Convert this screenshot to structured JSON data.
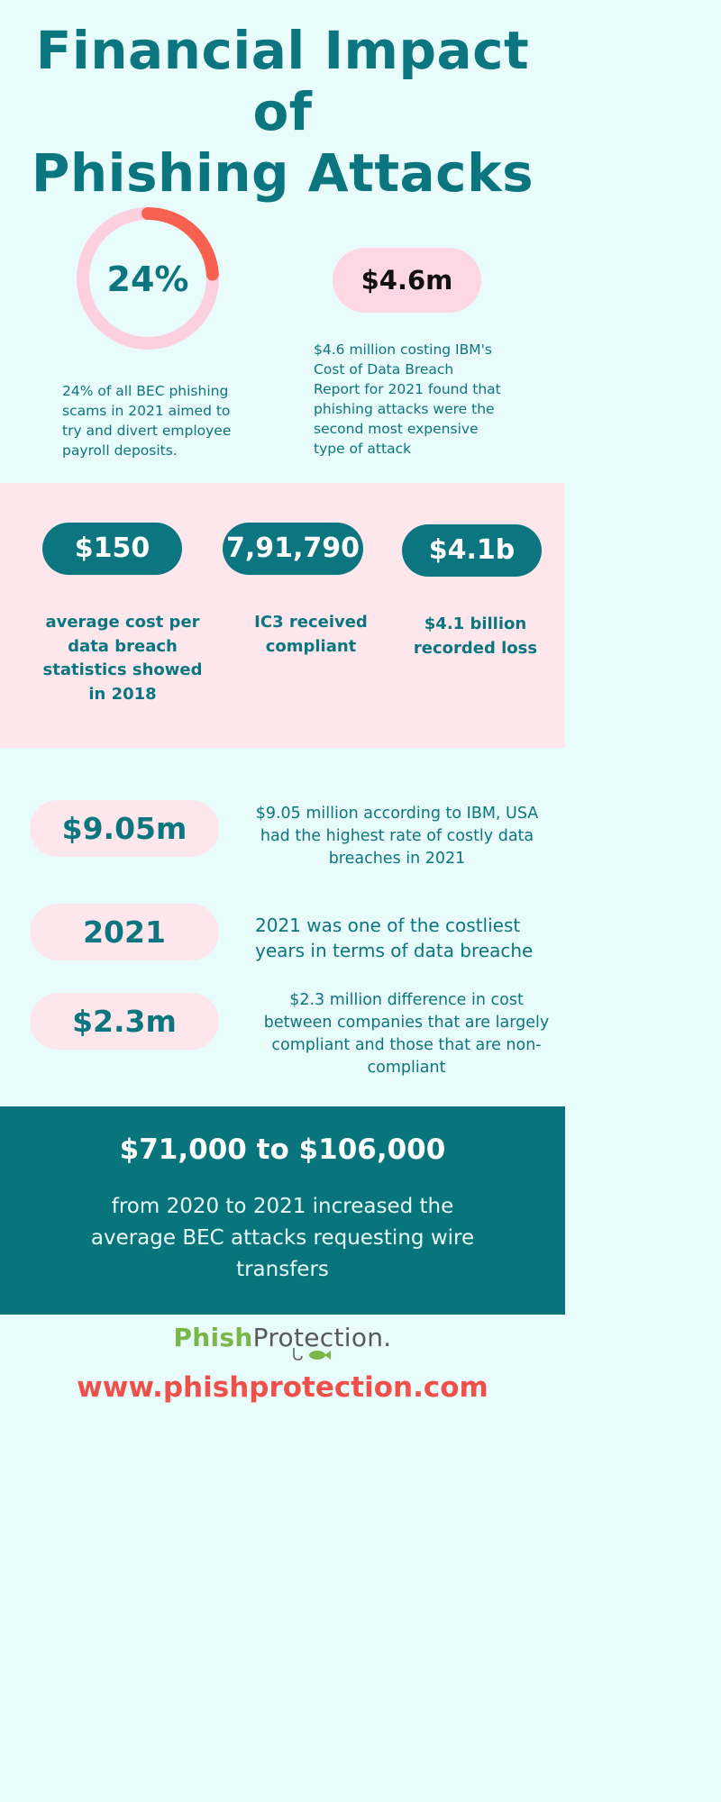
{
  "title_line1": "Financial Impact of",
  "title_line2": "Phishing Attacks",
  "stat_ring": {
    "label": "24%",
    "fraction": 0.24,
    "lines": [
      "24% of all BEC phishing",
      "scams in 2021 aimed to",
      "try and divert employee",
      "payroll deposits."
    ]
  },
  "stat_ibm": {
    "label": "$4.6m",
    "lines": [
      "$4.6 million costing IBM's",
      "Cost of Data Breach",
      "Report for 2021 found that",
      "phishing attacks were the",
      "second most expensive",
      "type of attack"
    ]
  },
  "pink_section": [
    {
      "value": "$150",
      "lines": [
        "average cost per",
        "data breach",
        "statistics showed",
        "in 2018"
      ]
    },
    {
      "value": "7,91,790",
      "lines": [
        "IC3 received",
        "compliant"
      ]
    },
    {
      "value": "$4.1b",
      "lines": [
        "$4.1 billion",
        "recorded loss"
      ]
    }
  ],
  "rows": [
    {
      "value": "$9.05m",
      "lines": [
        "$9.05 million according to IBM, USA",
        "had the highest rate of costly data",
        "breaches in 2021"
      ]
    },
    {
      "value": "2021",
      "lines": [
        "2021 was one of the costliest",
        "years in terms of data breache"
      ]
    },
    {
      "value": "$2.3m",
      "lines": [
        "$2.3 million difference in cost",
        "between companies that are largely",
        "compliant and those that are non-",
        "compliant"
      ]
    }
  ],
  "bec": {
    "headline": "$71,000 to $106,000",
    "lines": [
      "from 2020 to 2021 increased the",
      "average BEC attacks requesting wire",
      "transfers"
    ]
  },
  "logo": {
    "part1": "Phish",
    "part2": "Protection."
  },
  "url": "www.phishprotection.com",
  "colors": {
    "teal": "#0b7580",
    "pink": "#fdd7e3",
    "coral": "#f0504a",
    "background": "#e9fcfc"
  }
}
